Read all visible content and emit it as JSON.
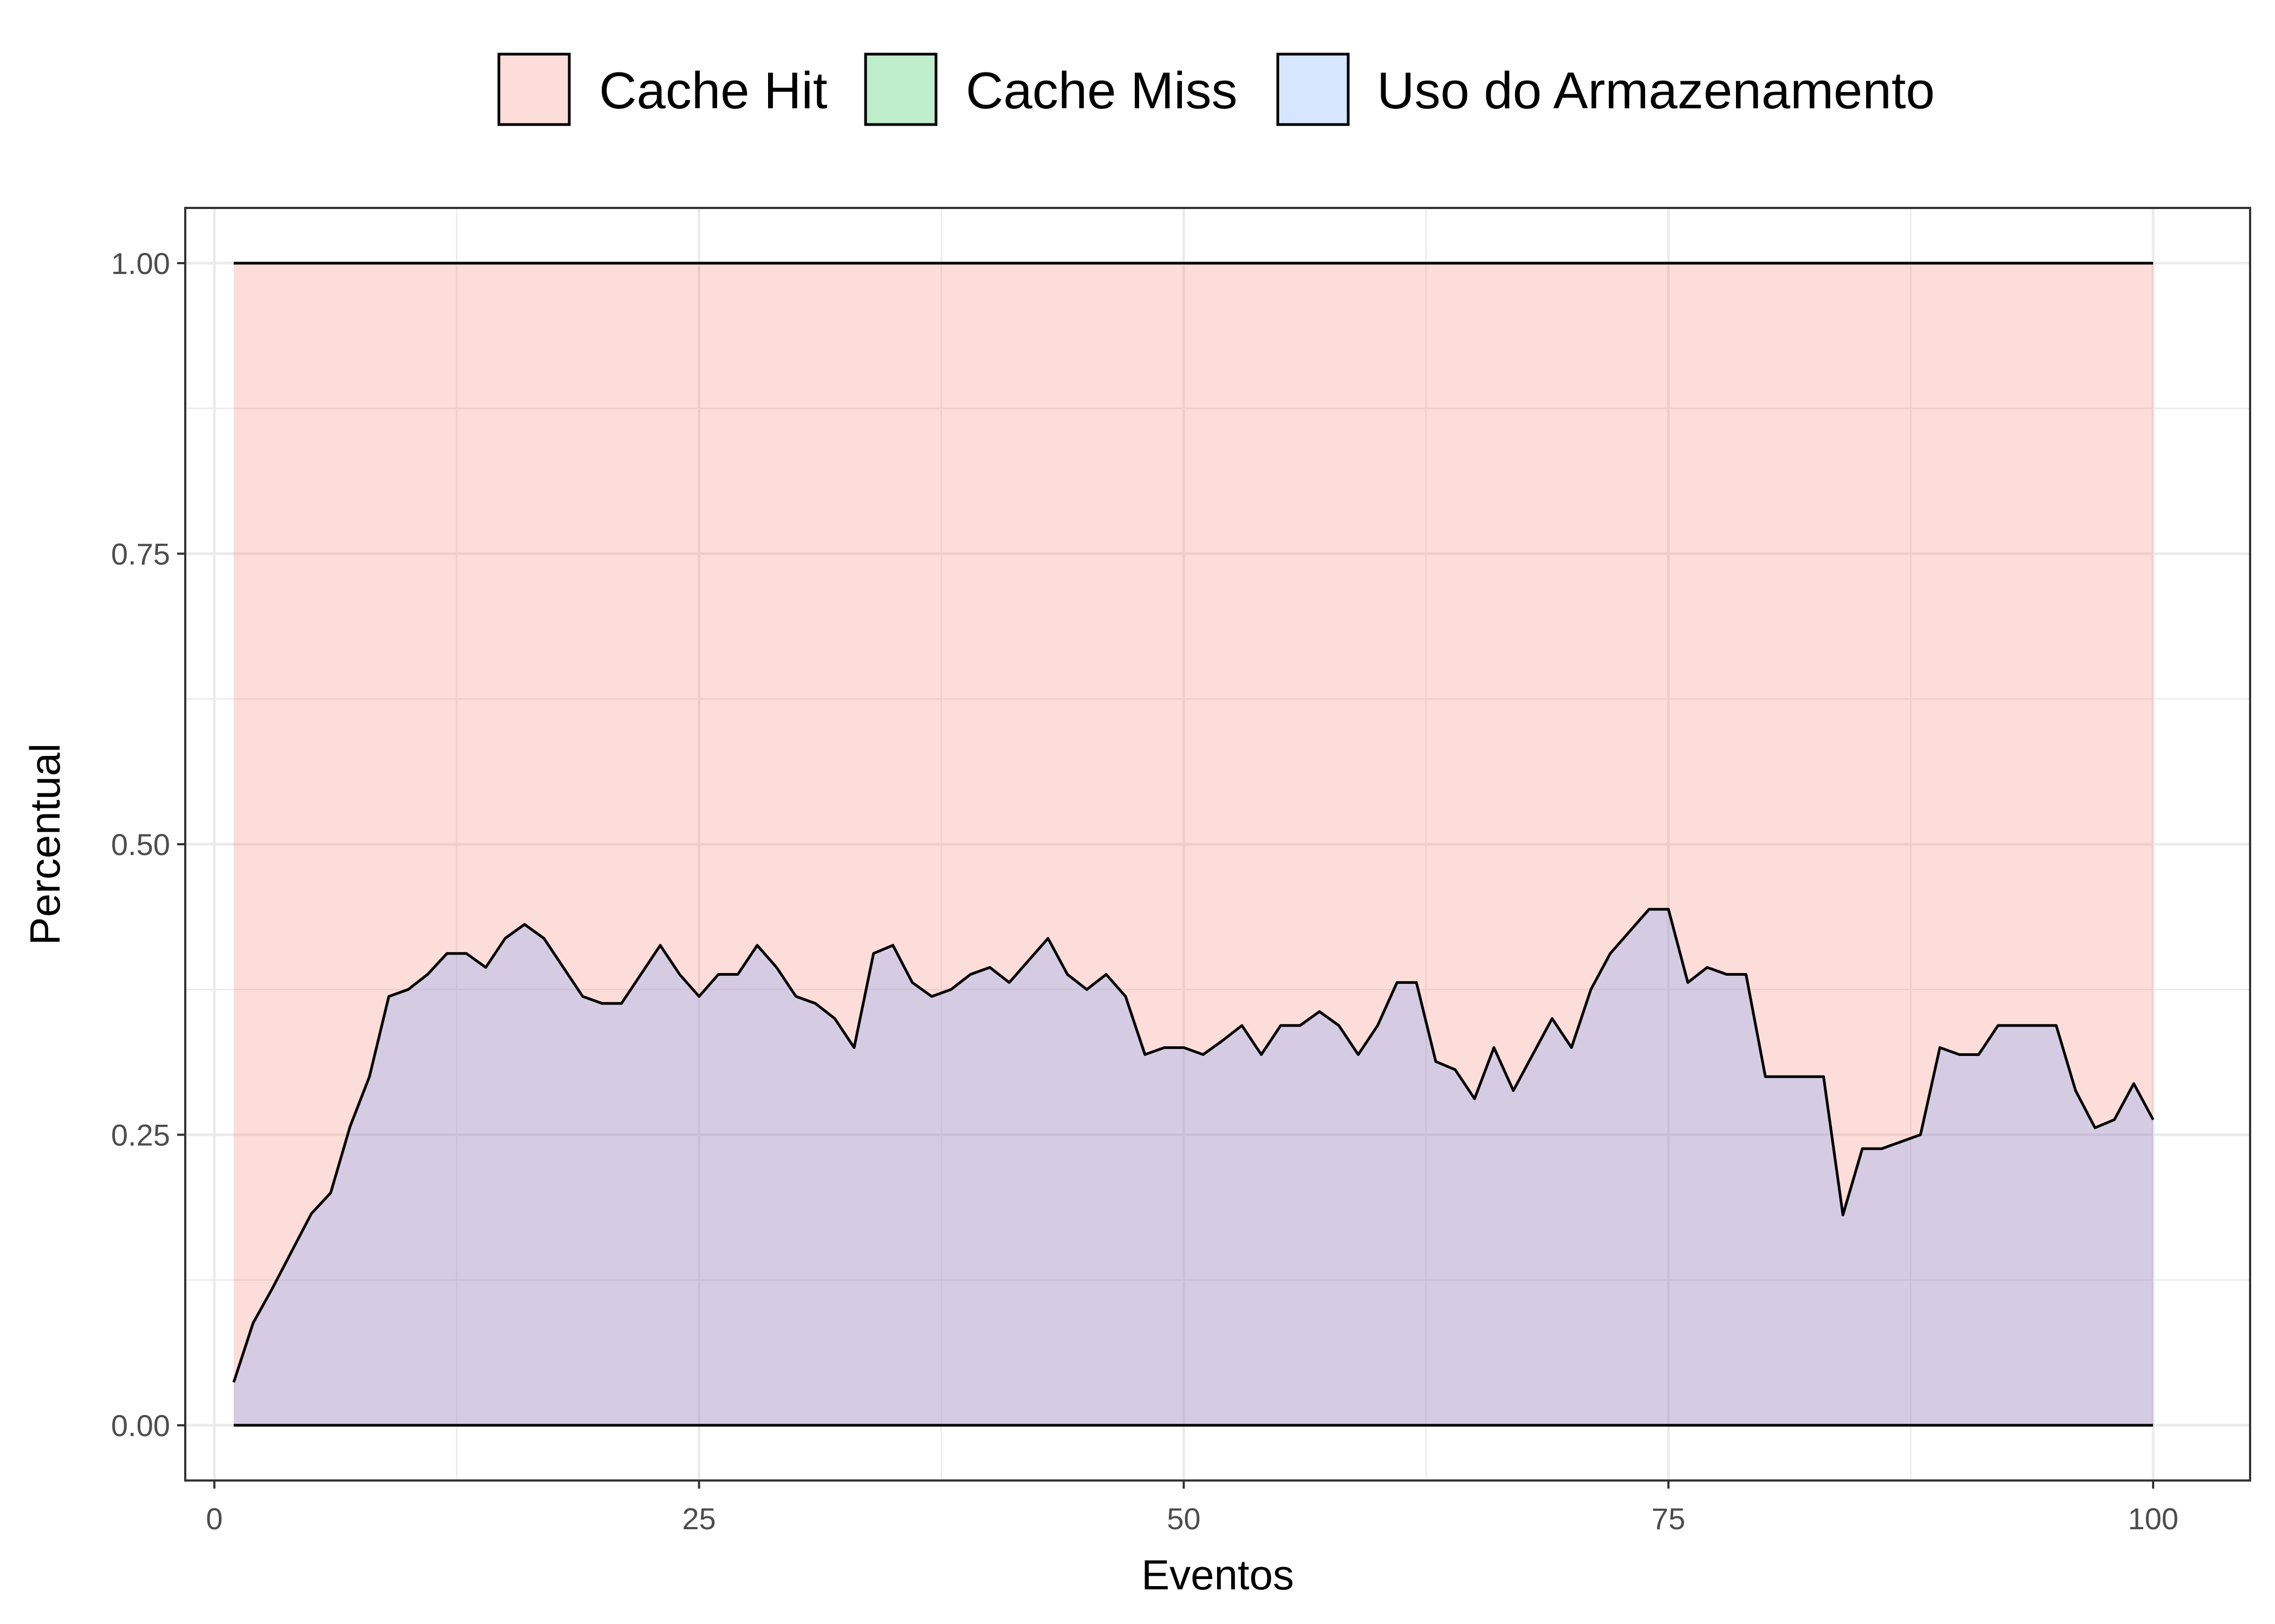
{
  "chart_data": {
    "type": "area",
    "xlabel": "Eventos",
    "ylabel": "Percentual",
    "xlim": [
      -1.5,
      105
    ],
    "ylim": [
      -0.0475,
      1.0475
    ],
    "x_ticks": [
      0,
      25,
      50,
      75,
      100
    ],
    "x_tick_labels": [
      "0",
      "25",
      "50",
      "75",
      "100"
    ],
    "y_ticks": [
      0.0,
      0.25,
      0.5,
      0.75,
      1.0
    ],
    "y_tick_labels": [
      "0.00",
      "0.25",
      "0.50",
      "0.75",
      "1.00"
    ],
    "grid": true,
    "legend_position": "top",
    "legend": [
      {
        "label": "Cache Hit",
        "color": "#F8766D"
      },
      {
        "label": "Cache Miss",
        "color": "#00BA38"
      },
      {
        "label": "Uso do Armazenamento",
        "color": "#619CFF"
      }
    ],
    "fill_alpha": 0.25,
    "x": [
      1,
      2,
      3,
      4,
      5,
      6,
      7,
      8,
      9,
      10,
      11,
      12,
      13,
      14,
      15,
      16,
      17,
      18,
      19,
      20,
      21,
      22,
      23,
      24,
      25,
      26,
      27,
      28,
      29,
      30,
      31,
      32,
      33,
      34,
      35,
      36,
      37,
      38,
      39,
      40,
      41,
      42,
      43,
      44,
      45,
      46,
      47,
      48,
      49,
      50,
      51,
      52,
      53,
      54,
      55,
      56,
      57,
      58,
      59,
      60,
      61,
      62,
      63,
      64,
      65,
      66,
      67,
      68,
      69,
      70,
      71,
      72,
      73,
      74,
      75,
      76,
      77,
      78,
      79,
      80,
      81,
      82,
      83,
      84,
      85,
      86,
      87,
      88,
      89,
      90,
      91,
      92,
      93,
      94,
      95,
      96,
      97,
      98,
      99,
      100
    ],
    "series": [
      {
        "name": "Cache Hit",
        "color": "#F8766D",
        "values": [
          1,
          1,
          1,
          1,
          1,
          1,
          1,
          1,
          1,
          1,
          1,
          1,
          1,
          1,
          1,
          1,
          1,
          1,
          1,
          1,
          1,
          1,
          1,
          1,
          1,
          1,
          1,
          1,
          1,
          1,
          1,
          1,
          1,
          1,
          1,
          1,
          1,
          1,
          1,
          1,
          1,
          1,
          1,
          1,
          1,
          1,
          1,
          1,
          1,
          1,
          1,
          1,
          1,
          1,
          1,
          1,
          1,
          1,
          1,
          1,
          1,
          1,
          1,
          1,
          1,
          1,
          1,
          1,
          1,
          1,
          1,
          1,
          1,
          1,
          1,
          1,
          1,
          1,
          1,
          1,
          1,
          1,
          1,
          1,
          1,
          1,
          1,
          1,
          1,
          1,
          1,
          1,
          1,
          1,
          1,
          1,
          1,
          1,
          1,
          1
        ]
      },
      {
        "name": "Cache Miss",
        "color": "#00BA38",
        "values": [
          0,
          0,
          0,
          0,
          0,
          0,
          0,
          0,
          0,
          0,
          0,
          0,
          0,
          0,
          0,
          0,
          0,
          0,
          0,
          0,
          0,
          0,
          0,
          0,
          0,
          0,
          0,
          0,
          0,
          0,
          0,
          0,
          0,
          0,
          0,
          0,
          0,
          0,
          0,
          0,
          0,
          0,
          0,
          0,
          0,
          0,
          0,
          0,
          0,
          0,
          0,
          0,
          0,
          0,
          0,
          0,
          0,
          0,
          0,
          0,
          0,
          0,
          0,
          0,
          0,
          0,
          0,
          0,
          0,
          0,
          0,
          0,
          0,
          0,
          0,
          0,
          0,
          0,
          0,
          0,
          0,
          0,
          0,
          0,
          0,
          0,
          0,
          0,
          0,
          0,
          0,
          0,
          0,
          0,
          0,
          0,
          0,
          0,
          0,
          0
        ]
      },
      {
        "name": "Uso do Armazenamento",
        "color": "#619CFF",
        "values": [
          0.037,
          0.088,
          0.118,
          0.15,
          0.182,
          0.2,
          0.257,
          0.3,
          0.369,
          0.375,
          0.388,
          0.406,
          0.406,
          0.394,
          0.419,
          0.431,
          0.419,
          0.394,
          0.369,
          0.363,
          0.363,
          0.388,
          0.413,
          0.388,
          0.369,
          0.388,
          0.388,
          0.413,
          0.394,
          0.369,
          0.363,
          0.35,
          0.325,
          0.406,
          0.413,
          0.381,
          0.369,
          0.375,
          0.388,
          0.394,
          0.381,
          0.4,
          0.419,
          0.388,
          0.375,
          0.388,
          0.369,
          0.319,
          0.325,
          0.325,
          0.319,
          0.331,
          0.344,
          0.319,
          0.344,
          0.344,
          0.356,
          0.344,
          0.319,
          0.344,
          0.381,
          0.381,
          0.313,
          0.306,
          0.281,
          0.325,
          0.288,
          0.319,
          0.35,
          0.325,
          0.375,
          0.406,
          0.425,
          0.444,
          0.444,
          0.381,
          0.394,
          0.388,
          0.388,
          0.3,
          0.3,
          0.3,
          0.3,
          0.181,
          0.238,
          0.238,
          0.244,
          0.25,
          0.325,
          0.319,
          0.319,
          0.344,
          0.344,
          0.344,
          0.344,
          0.288,
          0.256,
          0.263,
          0.294,
          0.263
        ]
      }
    ]
  }
}
